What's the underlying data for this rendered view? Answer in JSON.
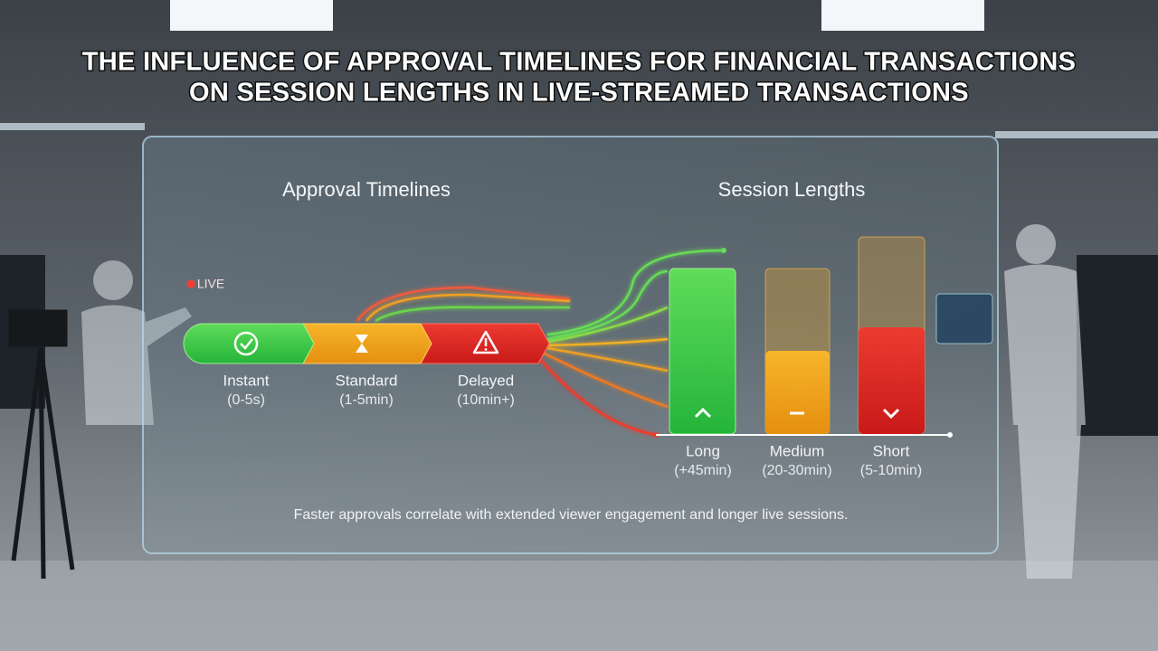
{
  "title_lines": [
    "THE INFLUENCE OF APPROVAL TIMELINES FOR FINANCIAL TRANSACTIONS",
    "ON SESSION LENGTHS IN LIVE-STREAMED TRANSACTIONS"
  ],
  "live_badge": "LIVE",
  "approval": {
    "heading": "Approval Timelines",
    "stages": [
      {
        "label": "Instant",
        "range": "(0-5s)"
      },
      {
        "label": "Standard",
        "range": "(1-5min)"
      },
      {
        "label": "Delayed",
        "range": "(10min+)"
      }
    ]
  },
  "sessions": {
    "heading": "Session Lengths",
    "bars": [
      {
        "label": "Long",
        "range": "(+45min)"
      },
      {
        "label": "Medium",
        "range": "(20-30min)"
      },
      {
        "label": "Short",
        "range": "(5-10min)"
      }
    ]
  },
  "footnote": "Faster approvals correlate with extended viewer engagement and longer live sessions."
}
